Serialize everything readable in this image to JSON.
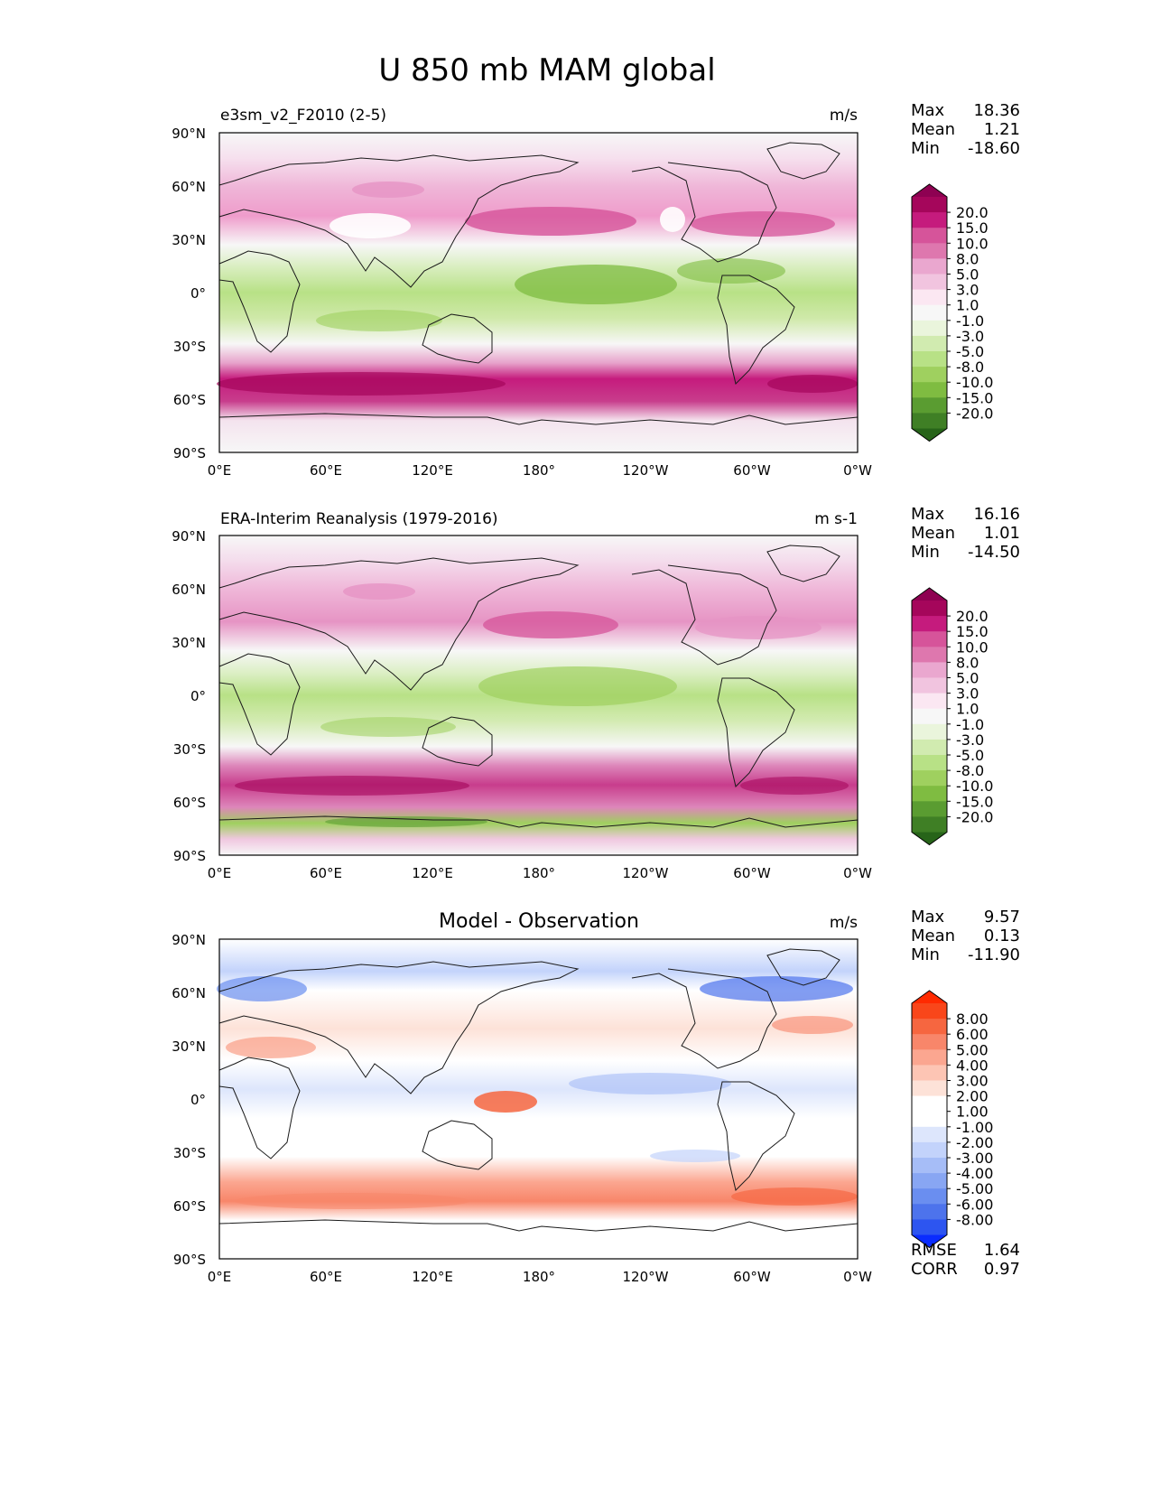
{
  "figure": {
    "title": "U 850 mb MAM global"
  },
  "axes": {
    "lat_ticks": [
      "90°N",
      "60°N",
      "30°N",
      "0°",
      "30°S",
      "60°S",
      "90°S"
    ],
    "lon_ticks": [
      "0°E",
      "60°E",
      "120°E",
      "180°",
      "120°W",
      "60°W",
      "0°W"
    ]
  },
  "panels": [
    {
      "id": "model",
      "left_title": "e3sm_v2_F2010 (2-5)",
      "center_title": "",
      "units": "m/s",
      "stats": [
        {
          "label": "Max",
          "value": "18.36"
        },
        {
          "label": "Mean",
          "value": "1.21"
        },
        {
          "label": "Min",
          "value": "-18.60"
        }
      ],
      "colorbar": {
        "labels": [
          "20.0",
          "15.0",
          "10.0",
          "8.0",
          "5.0",
          "3.0",
          "1.0",
          "-1.0",
          "-3.0",
          "-5.0",
          "-8.0",
          "-10.0",
          "-15.0",
          "-20.0"
        ],
        "colors": [
          "#8e0152",
          "#a5065b",
          "#c51b7d",
          "#d6549a",
          "#de77ae",
          "#eaa7cf",
          "#f1c4df",
          "#fbe7f2",
          "#f7f7f7",
          "#eaf5dc",
          "#d1ebb0",
          "#b8e186",
          "#9fd05f",
          "#7fbc41",
          "#5a9c31",
          "#3f7f25",
          "#276419"
        ]
      },
      "footer_stats": []
    },
    {
      "id": "obs",
      "left_title": "ERA-Interim Reanalysis (1979-2016)",
      "center_title": "",
      "units": "m s-1",
      "stats": [
        {
          "label": "Max",
          "value": "16.16"
        },
        {
          "label": "Mean",
          "value": "1.01"
        },
        {
          "label": "Min",
          "value": "-14.50"
        }
      ],
      "colorbar": {
        "labels": [
          "20.0",
          "15.0",
          "10.0",
          "8.0",
          "5.0",
          "3.0",
          "1.0",
          "-1.0",
          "-3.0",
          "-5.0",
          "-8.0",
          "-10.0",
          "-15.0",
          "-20.0"
        ],
        "colors": [
          "#8e0152",
          "#a5065b",
          "#c51b7d",
          "#d6549a",
          "#de77ae",
          "#eaa7cf",
          "#f1c4df",
          "#fbe7f2",
          "#f7f7f7",
          "#eaf5dc",
          "#d1ebb0",
          "#b8e186",
          "#9fd05f",
          "#7fbc41",
          "#5a9c31",
          "#3f7f25",
          "#276419"
        ]
      },
      "footer_stats": []
    },
    {
      "id": "diff",
      "left_title": "",
      "center_title": "Model - Observation",
      "units": "m/s",
      "stats": [
        {
          "label": "Max",
          "value": "9.57"
        },
        {
          "label": "Mean",
          "value": "0.13"
        },
        {
          "label": "Min",
          "value": "-11.90"
        }
      ],
      "colorbar": {
        "labels": [
          "8.00",
          "6.00",
          "5.00",
          "4.00",
          "3.00",
          "2.00",
          "1.00",
          "-1.00",
          "-2.00",
          "-3.00",
          "-4.00",
          "-5.00",
          "-6.00",
          "-8.00"
        ],
        "colors": [
          "#ff2a00",
          "#f9461a",
          "#f66640",
          "#f8866a",
          "#fba690",
          "#fdc5b4",
          "#fde2d8",
          "#ffffff",
          "#ffffff",
          "#dde6fc",
          "#c3d3fb",
          "#a6bdf7",
          "#88a6f3",
          "#6a8ef0",
          "#4d73ec",
          "#2d55f0",
          "#0a2cff"
        ]
      },
      "footer_stats": [
        {
          "label": "RMSE",
          "value": "1.64"
        },
        {
          "label": "CORR",
          "value": "0.97"
        }
      ]
    }
  ],
  "colors": {
    "land_outline": "#1a1a1a",
    "background": "#ffffff"
  }
}
